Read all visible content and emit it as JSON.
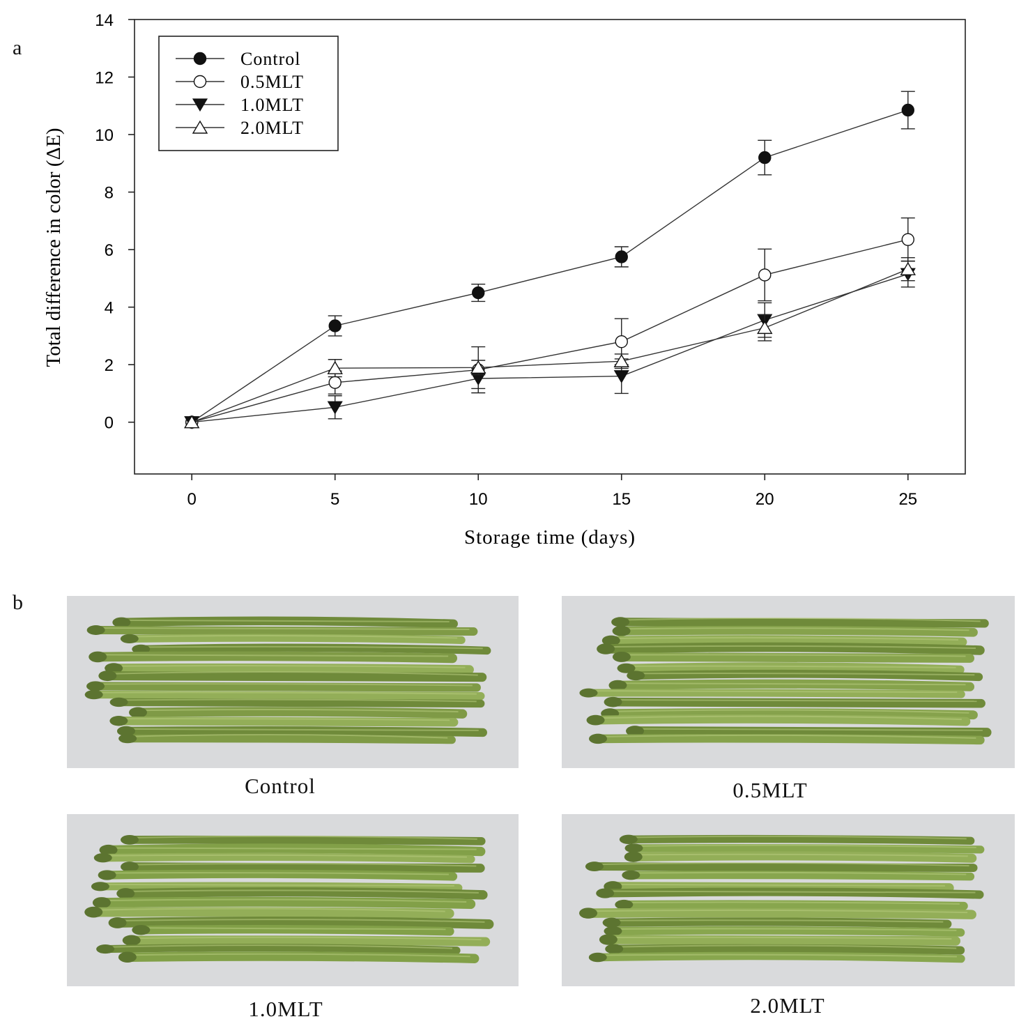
{
  "panels": {
    "a_label": "a",
    "b_label": "b"
  },
  "chart_data": {
    "type": "line",
    "xlabel": "Storage time (days)",
    "ylabel": "Total difference in color (ΔE)",
    "x": [
      0,
      5,
      10,
      15,
      20,
      25
    ],
    "xlim": [
      -2,
      27
    ],
    "ylim": [
      -1.8,
      14
    ],
    "xticks": [
      0,
      5,
      10,
      15,
      20,
      25
    ],
    "yticks": [
      0,
      2,
      4,
      6,
      8,
      10,
      12,
      14
    ],
    "legend_position": "top-left",
    "series": [
      {
        "name": "Control",
        "marker": "filled-circle",
        "values": [
          0,
          3.35,
          4.5,
          5.75,
          9.2,
          10.85
        ],
        "errors": [
          0,
          0.35,
          0.3,
          0.35,
          0.6,
          0.65
        ]
      },
      {
        "name": "0.5MLT",
        "marker": "open-circle",
        "values": [
          0,
          1.38,
          1.82,
          2.8,
          5.12,
          6.35
        ],
        "errors": [
          0,
          0.4,
          0.8,
          0.8,
          0.9,
          0.75
        ]
      },
      {
        "name": "1.0MLT",
        "marker": "filled-triangle-down",
        "values": [
          0,
          0.52,
          1.52,
          1.6,
          3.55,
          5.15
        ],
        "errors": [
          0,
          0.4,
          0.35,
          0.6,
          0.6,
          0.45
        ]
      },
      {
        "name": "2.0MLT",
        "marker": "open-triangle-up",
        "values": [
          0,
          1.88,
          1.9,
          2.12,
          3.28,
          5.32
        ],
        "errors": [
          0,
          0.3,
          0.25,
          0.25,
          0.45,
          0.4
        ]
      }
    ]
  },
  "photos": [
    {
      "caption": "Control",
      "tone": "#7f9a46"
    },
    {
      "caption": "0.5MLT",
      "tone": "#86a24c"
    },
    {
      "caption": "1.0MLT",
      "tone": "#82a048"
    },
    {
      "caption": "2.0MLT",
      "tone": "#88a64e"
    }
  ]
}
